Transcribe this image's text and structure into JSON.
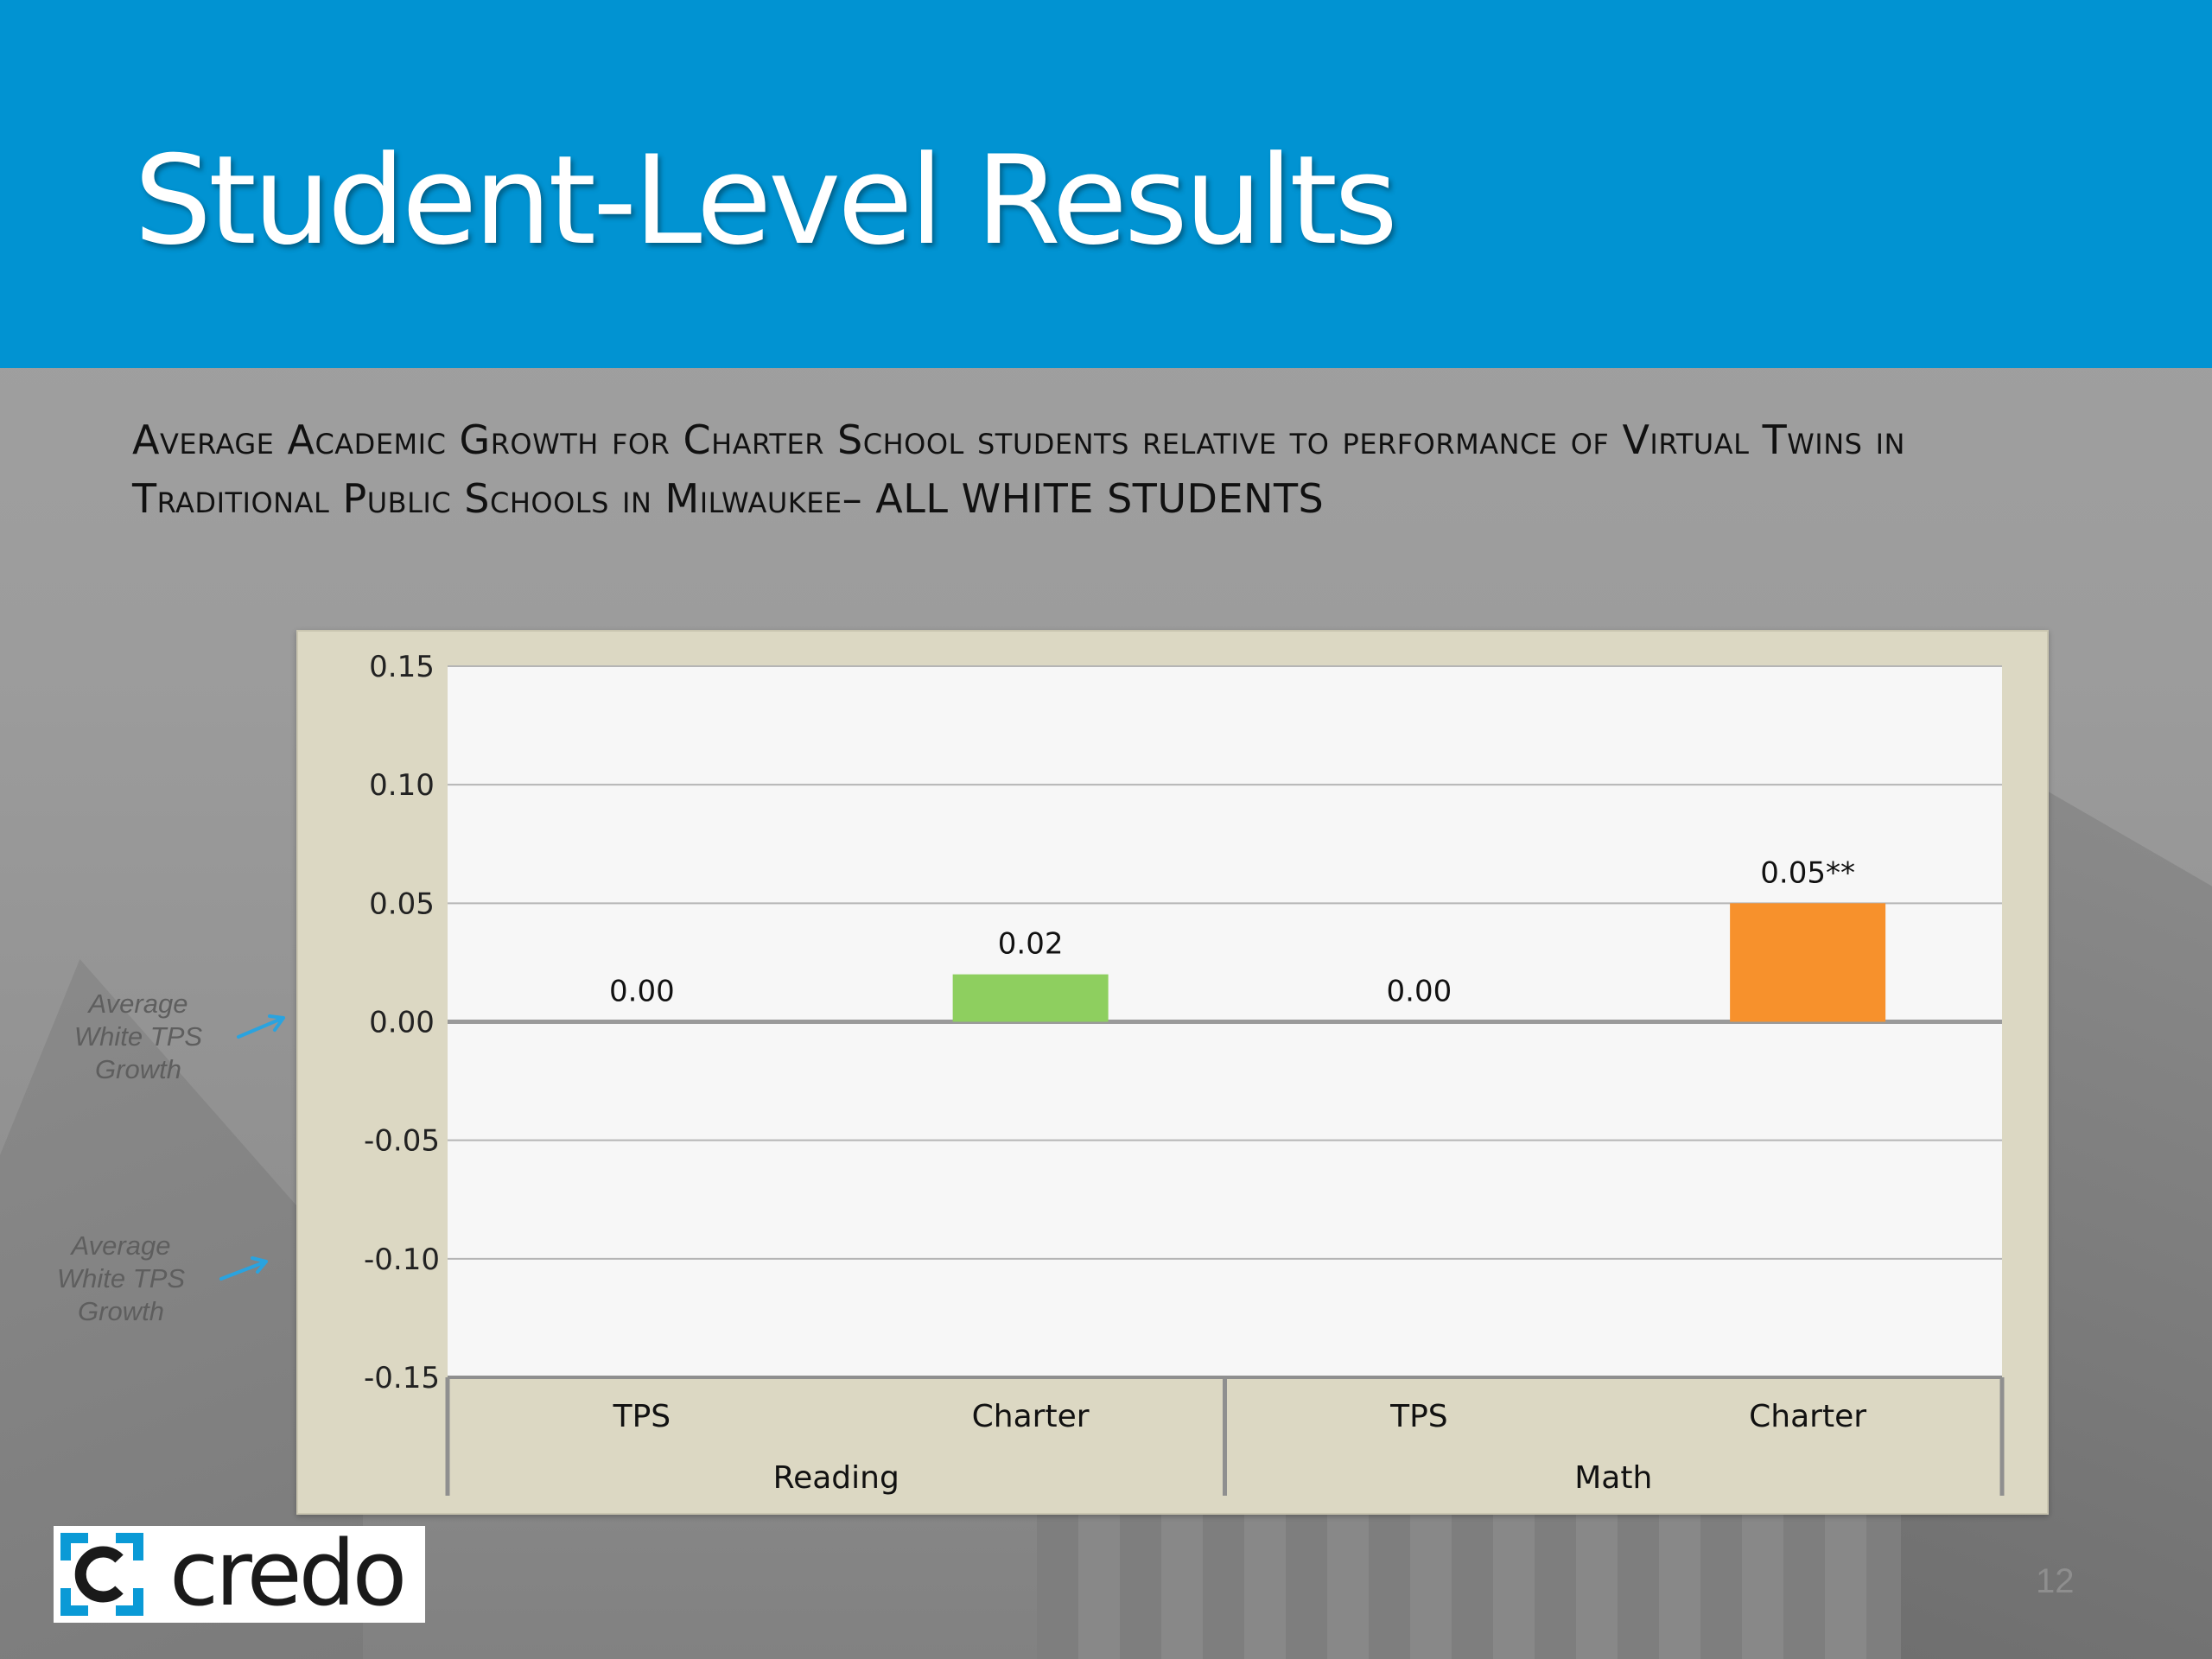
{
  "slide": {
    "title": "Student-Level Results",
    "subtitle": "Average Academic Growth for Charter School students relative to performance of Virtual Twins in Traditional Public Schools in Milwaukee– ALL WHITE STUDENTS",
    "page_number": "12"
  },
  "callouts": [
    {
      "text": "Average White TPS Growth",
      "points_to": 0.0
    },
    {
      "text": "Average White TPS Growth",
      "points_to": -0.1
    }
  ],
  "logo": {
    "text": "credo"
  },
  "colors": {
    "header": "#0193d2",
    "frame": "#dcd8c3",
    "plot": "#f7f7f7",
    "bar_reading_charter": "#8ecf5f",
    "bar_math_charter": "#f7912c",
    "callout_arrow": "#2aa3df"
  },
  "chart_data": {
    "type": "bar",
    "categories": [
      "TPS",
      "Charter",
      "TPS",
      "Charter"
    ],
    "groups": [
      {
        "label": "Reading",
        "categories": [
          "TPS",
          "Charter"
        ]
      },
      {
        "label": "Math",
        "categories": [
          "TPS",
          "Charter"
        ]
      }
    ],
    "values": [
      0.0,
      0.02,
      0.0,
      0.05
    ],
    "data_labels": [
      "0.00",
      "0.02",
      "0.00",
      "0.05**"
    ],
    "bar_colors": [
      null,
      "#8ecf5f",
      null,
      "#f7912c"
    ],
    "ylim": [
      -0.15,
      0.15
    ],
    "yticks": [
      0.15,
      0.1,
      0.05,
      0.0,
      -0.05,
      -0.1,
      -0.15
    ],
    "ytick_labels": [
      "0.15",
      "0.10",
      "0.05",
      "0.00",
      "-0.05",
      "-0.10",
      "-0.15"
    ],
    "grid": true,
    "legend": "none"
  }
}
